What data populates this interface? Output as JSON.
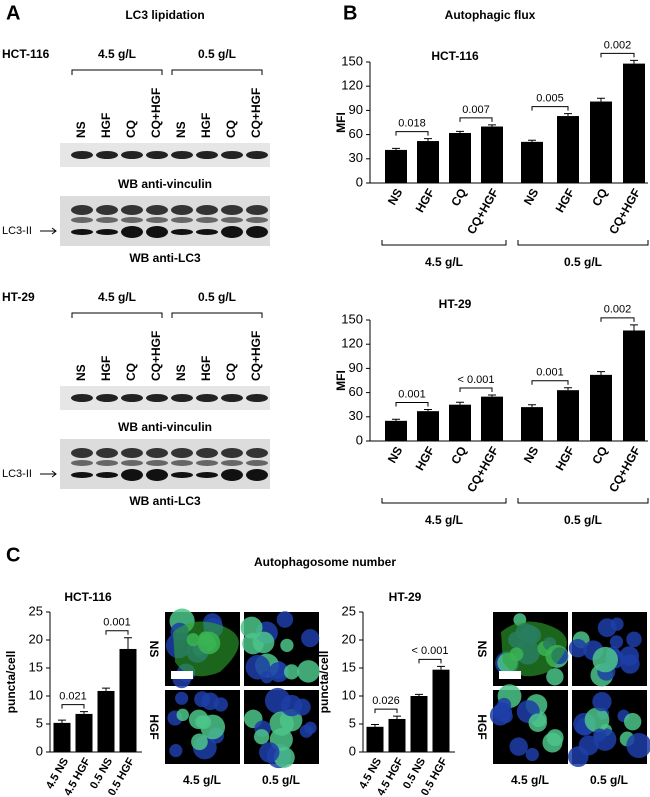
{
  "panel_a": {
    "letter": "A",
    "title": "LC3 lipidation",
    "blots": [
      {
        "cell_line": "HCT-116",
        "groups": [
          "4.5 g/L",
          "0.5 g/L"
        ],
        "lanes": [
          "NS",
          "HGF",
          "CQ",
          "CQ+HGF",
          "NS",
          "HGF",
          "CQ",
          "CQ+HGF"
        ],
        "wb_labels": [
          "WB anti-vinculin",
          "WB anti-LC3"
        ],
        "marker": "LC3-II"
      },
      {
        "cell_line": "HT-29",
        "groups": [
          "4.5 g/L",
          "0.5 g/L"
        ],
        "lanes": [
          "NS",
          "HGF",
          "CQ",
          "CQ+HGF",
          "NS",
          "HGF",
          "CQ",
          "CQ+HGF"
        ],
        "wb_labels": [
          "WB anti-vinculin",
          "WB anti-LC3"
        ],
        "marker": "LC3-II"
      }
    ]
  },
  "panel_b": {
    "letter": "B",
    "title": "Autophagic flux"
  },
  "panel_c": {
    "letter": "C",
    "title": "Autophagosome number",
    "micrographs": [
      {
        "rows": [
          "NS",
          "HGF"
        ],
        "columns": [
          "4.5 g/L",
          "0.5 g/L"
        ]
      },
      {
        "rows": [
          "NS",
          "HGF"
        ],
        "columns": [
          "4.5 g/L",
          "0.5 g/L"
        ]
      }
    ]
  },
  "chart_data": [
    {
      "type": "bar",
      "title": "HCT-116",
      "y_label": "MFI",
      "color": "#000000",
      "categories": [
        "NS",
        "HGF",
        "CQ",
        "CQ+HGF",
        "NS",
        "HGF",
        "CQ",
        "CQ+HGF"
      ],
      "values": [
        41,
        52,
        62,
        70,
        51,
        83,
        101,
        148
      ],
      "errors": [
        2,
        3,
        2,
        2,
        2,
        3,
        4,
        4
      ],
      "groups": [
        "4.5 g/L",
        "0.5 g/L"
      ],
      "annotations": [
        "0.018",
        "0.007",
        "0.005",
        "0.002"
      ],
      "ylim": [
        0,
        150
      ],
      "yticks": [
        0,
        30,
        60,
        90,
        120,
        150
      ]
    },
    {
      "type": "bar",
      "title": "HT-29",
      "y_label": "MFI",
      "color": "#000000",
      "categories": [
        "NS",
        "HGF",
        "CQ",
        "CQ+HGF",
        "NS",
        "HGF",
        "CQ",
        "CQ+HGF"
      ],
      "values": [
        25,
        37,
        45,
        55,
        42,
        63,
        82,
        137
      ],
      "errors": [
        2,
        2,
        3,
        2,
        3,
        3,
        4,
        7
      ],
      "groups": [
        "4.5 g/L",
        "0.5 g/L"
      ],
      "annotations": [
        "0.001",
        "< 0.001",
        "0.001",
        "0.002"
      ],
      "ylim": [
        0,
        150
      ],
      "yticks": [
        0,
        30,
        60,
        90,
        120,
        150
      ]
    },
    {
      "type": "bar",
      "title": "HCT-116",
      "y_label": "puncta/cell",
      "color": "#000000",
      "categories": [
        "4.5 NS",
        "4.5 HGF",
        "0.5 NS",
        "0.5 HGF"
      ],
      "values": [
        5.2,
        6.8,
        10.9,
        18.4
      ],
      "errors": [
        0.5,
        0.4,
        0.5,
        2.0
      ],
      "annotations": [
        "0.021",
        "0.001"
      ],
      "ylim": [
        0,
        25
      ],
      "yticks": [
        0,
        5,
        10,
        15,
        20,
        25
      ]
    },
    {
      "type": "bar",
      "title": "HT-29",
      "y_label": "puncta/cell",
      "color": "#000000",
      "categories": [
        "4.5 NS",
        "4.5 HGF",
        "0.5 NS",
        "0.5 HGF"
      ],
      "values": [
        4.5,
        5.9,
        10.0,
        14.7
      ],
      "errors": [
        0.4,
        0.5,
        0.3,
        0.6
      ],
      "annotations": [
        "0.026",
        "< 0.001"
      ],
      "ylim": [
        0,
        25
      ],
      "yticks": [
        0,
        5,
        10,
        15,
        20,
        25
      ]
    }
  ]
}
